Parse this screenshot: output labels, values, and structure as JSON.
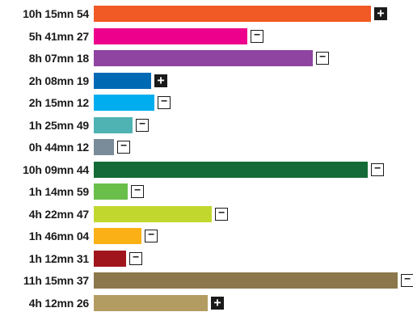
{
  "chart_data": {
    "type": "bar",
    "orientation": "horizontal",
    "categories": [
      "10h 15mn 54",
      "5h 41mn 27",
      "8h 07mn 18",
      "2h 08mn 19",
      "2h 15mn 12",
      "1h 25mn 49",
      "0h 44mn 12",
      "10h 09mn 44",
      "1h 14mn 59",
      "4h 22mn 47",
      "1h 46mn 04",
      "1h 12mn 31",
      "11h 15mn 37",
      "4h 12mn 26"
    ],
    "values": [
      615.9,
      341.45,
      487.3,
      128.32,
      135.2,
      85.82,
      44.2,
      609.73,
      74.98,
      262.78,
      106.07,
      72.52,
      675.62,
      252.43
    ],
    "value_unit": "minutes",
    "colors": [
      "#f15a24",
      "#ec008c",
      "#8e44a0",
      "#0069b4",
      "#00aeef",
      "#4fb3b3",
      "#7a8c99",
      "#156b37",
      "#6abf4b",
      "#c1d72e",
      "#fbb116",
      "#a0151b",
      "#8b774b",
      "#b39c62"
    ],
    "toggles": [
      "plus",
      "minus",
      "minus",
      "plus",
      "minus",
      "minus",
      "minus",
      "minus",
      "minus",
      "minus",
      "minus",
      "minus",
      "minus",
      "plus"
    ],
    "grid": false,
    "legend": "none"
  },
  "icons": {
    "plus": "plus-icon",
    "minus": "minus-icon"
  }
}
